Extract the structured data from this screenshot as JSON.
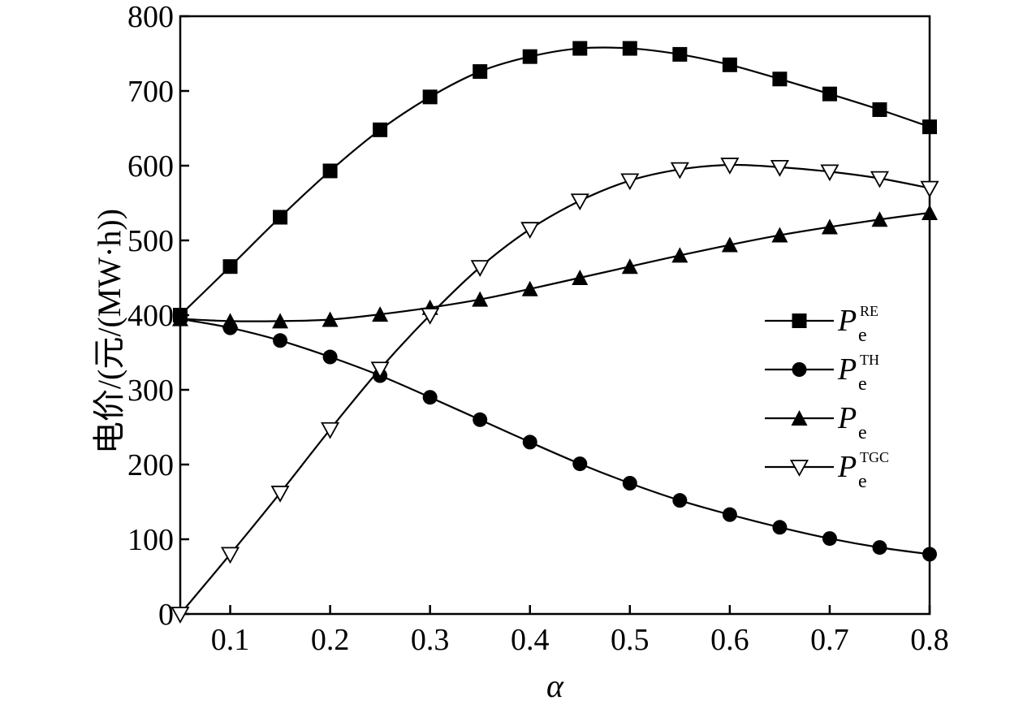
{
  "chart_data": {
    "type": "line",
    "title": "",
    "xlabel": "α",
    "ylabel": "电价/(元/(MW·h))",
    "xlim": [
      0.05,
      0.8
    ],
    "ylim": [
      0,
      800
    ],
    "x_ticks": [
      "0.1",
      "0.2",
      "0.3",
      "0.4",
      "0.5",
      "0.6",
      "0.7",
      "0.8"
    ],
    "x_tick_values": [
      0.1,
      0.2,
      0.3,
      0.4,
      0.5,
      0.6,
      0.7,
      0.8
    ],
    "y_ticks": [
      "0",
      "100",
      "200",
      "300",
      "400",
      "500",
      "600",
      "700",
      "800"
    ],
    "y_tick_values": [
      0,
      100,
      200,
      300,
      400,
      500,
      600,
      700,
      800
    ],
    "grid": false,
    "legend_position": "right-middle",
    "x": [
      0.05,
      0.1,
      0.15,
      0.2,
      0.25,
      0.3,
      0.35,
      0.4,
      0.45,
      0.5,
      0.55,
      0.6,
      0.65,
      0.7,
      0.75,
      0.8
    ],
    "series": [
      {
        "key": "re",
        "legend_main": "P",
        "legend_sub": "e",
        "legend_sup": "RE",
        "marker": "square",
        "color": "#000000",
        "values": [
          400,
          465,
          531,
          593,
          648,
          692,
          726,
          746,
          757,
          757,
          749,
          735,
          716,
          696,
          675,
          652
        ]
      },
      {
        "key": "th",
        "legend_main": "P",
        "legend_sub": "e",
        "legend_sup": "TH",
        "marker": "circle",
        "color": "#000000",
        "values": [
          395,
          383,
          366,
          344,
          319,
          290,
          260,
          230,
          201,
          175,
          152,
          133,
          116,
          101,
          89,
          80
        ]
      },
      {
        "key": "e",
        "legend_main": "P",
        "legend_sub": "e",
        "legend_sup": "",
        "marker": "triangle-up",
        "color": "#000000",
        "values": [
          395,
          392,
          392,
          394,
          401,
          410,
          421,
          435,
          450,
          465,
          480,
          494,
          507,
          518,
          528,
          537
        ]
      },
      {
        "key": "tgc",
        "legend_main": "P",
        "legend_sub": "e",
        "legend_sup": "TGC",
        "marker": "triangle-down-open",
        "color": "#000000",
        "values": [
          0,
          80,
          162,
          247,
          328,
          400,
          464,
          515,
          553,
          580,
          595,
          601,
          598,
          592,
          583,
          570
        ]
      }
    ]
  }
}
